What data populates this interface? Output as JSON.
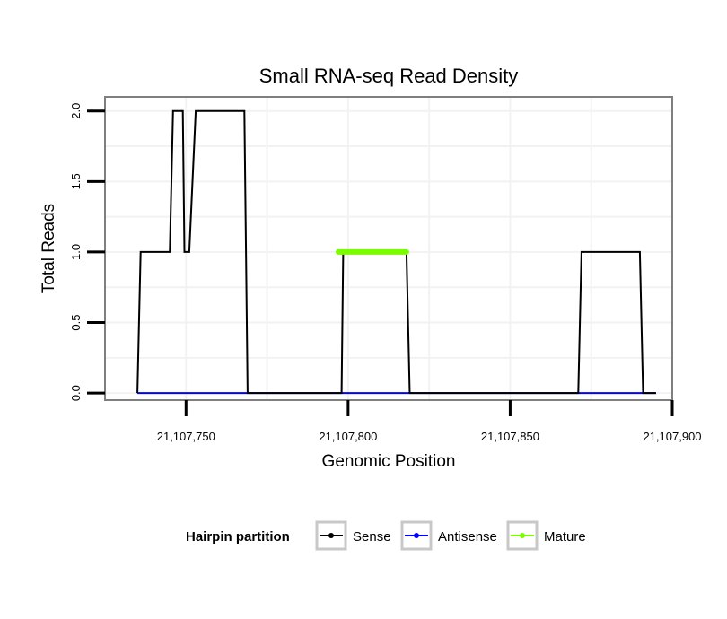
{
  "chart_data": {
    "type": "line",
    "title": "Small RNA-seq Read Density",
    "xlabel": "Genomic Position",
    "ylabel": "Total Reads",
    "xlim": [
      21107725,
      21107900
    ],
    "ylim": [
      -0.05,
      2.1
    ],
    "x_ticks": [
      21107750,
      21107800,
      21107850,
      21107900
    ],
    "x_tick_labels": [
      "21,107,750",
      "21,107,800",
      "21,107,850",
      "21,107,900"
    ],
    "y_ticks": [
      0.0,
      0.5,
      1.0,
      1.5,
      2.0
    ],
    "y_tick_labels": [
      "0.0",
      "0.5",
      "1.0",
      "1.5",
      "2.0"
    ],
    "grid": true,
    "legend": {
      "title": "Hairpin partition",
      "position": "bottom",
      "entries": [
        "Sense",
        "Antisense",
        "Mature"
      ]
    },
    "series": [
      {
        "name": "Sense",
        "color": "#000000",
        "x": [
          21107735,
          21107736,
          21107745,
          21107746,
          21107749,
          21107749.5,
          21107750,
          21107751,
          21107753,
          21107768,
          21107769,
          21107798,
          21107798.5,
          21107818,
          21107819,
          21107871,
          21107872,
          21107890,
          21107891,
          21107895
        ],
        "y": [
          0,
          1,
          1,
          2,
          2,
          1,
          1,
          1,
          2,
          2,
          0,
          0,
          1,
          1,
          0,
          0,
          1,
          1,
          0,
          0
        ]
      },
      {
        "name": "Antisense",
        "color": "#0000ff",
        "x": [
          21107735,
          21107895
        ],
        "y": [
          0,
          0
        ]
      },
      {
        "name": "Mature",
        "color": "#7cfc00",
        "x": [
          21107797,
          21107818
        ],
        "y": [
          1,
          1
        ]
      }
    ]
  }
}
